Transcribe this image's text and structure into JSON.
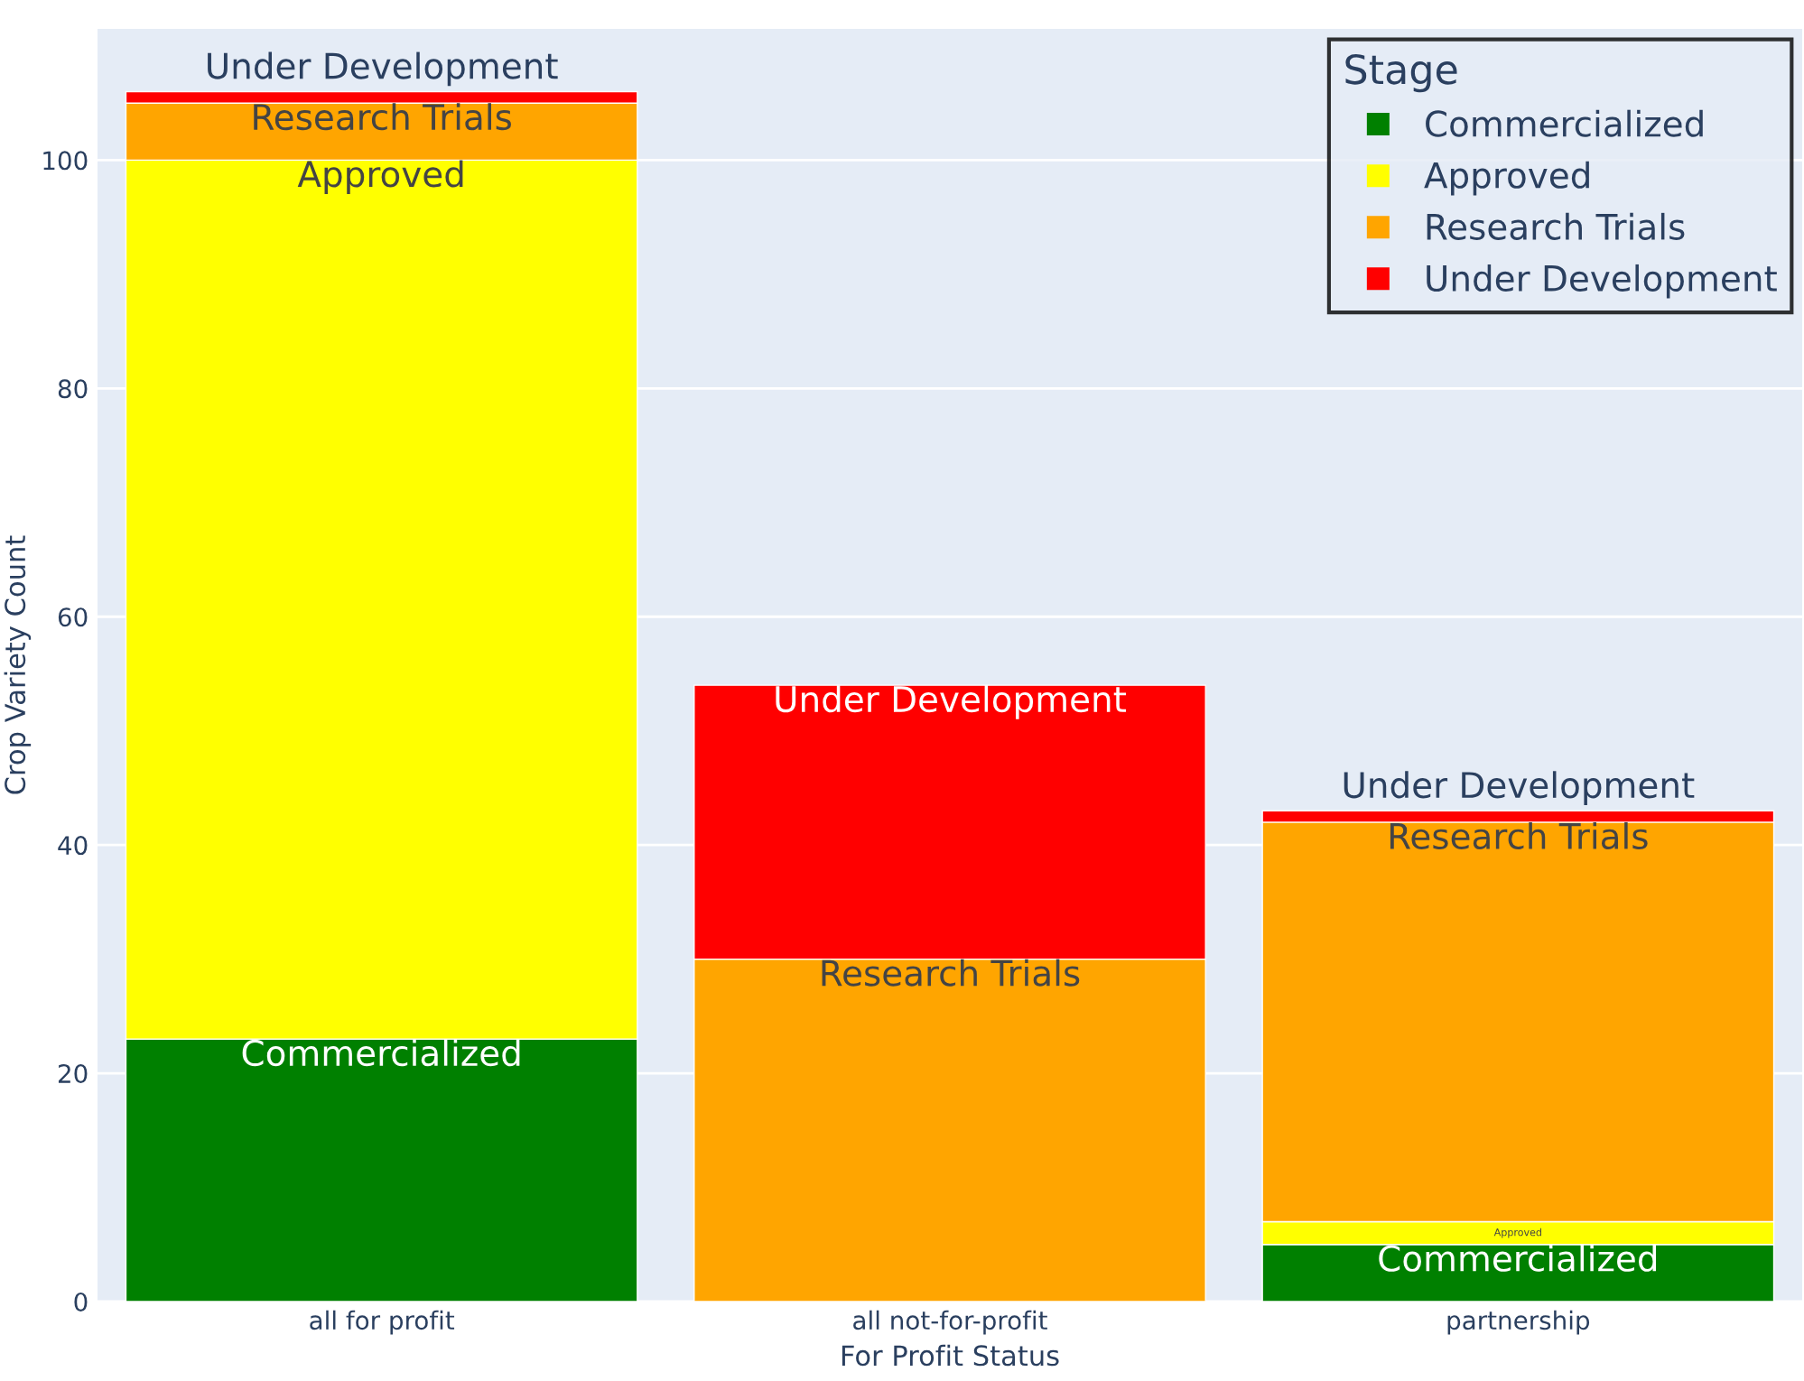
{
  "chart_data": {
    "type": "bar",
    "stacked": true,
    "xlabel": "For Profit Status",
    "ylabel": "Crop Variety Count",
    "legend_title": "Stage",
    "legend": "top right",
    "grid": "y",
    "categories": [
      "all for profit",
      "all not-for-profit",
      "partnership"
    ],
    "ylim": [
      0,
      111.5
    ],
    "yticks": [
      0,
      20,
      40,
      60,
      80,
      100
    ],
    "series": [
      {
        "name": "Commercialized",
        "color": "#008000",
        "values": [
          23,
          null,
          5
        ],
        "value_labels": [
          "Commercialized",
          null,
          "Commercialized"
        ]
      },
      {
        "name": "Approved",
        "color": "#ffff00",
        "values": [
          77,
          null,
          2
        ],
        "value_labels": [
          "Approved",
          null,
          "Approved"
        ]
      },
      {
        "name": "Research Trials",
        "color": "#ffa500",
        "values": [
          5,
          30,
          35
        ],
        "value_labels": [
          "Research Trials",
          "Research Trials",
          "Research Trials"
        ]
      },
      {
        "name": "Under Development",
        "color": "#ff0000",
        "values": [
          1,
          24,
          1
        ],
        "value_labels": [
          "Under Development",
          "Under Development",
          "Under Development"
        ]
      }
    ]
  }
}
